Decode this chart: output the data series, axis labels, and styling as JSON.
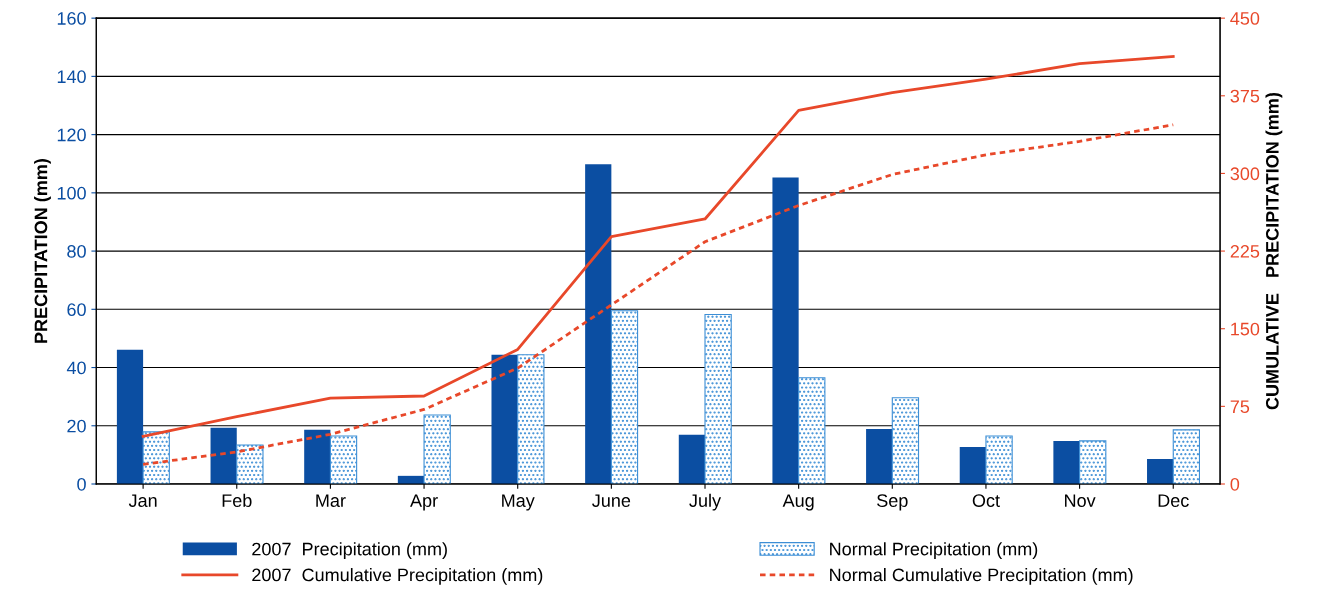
{
  "chart_data": {
    "type": "bar",
    "ylabel": "PRECIPITATION (mm)",
    "y2label": "CUMULATIVE   PRECIPITATION (mm)",
    "categories": [
      "Jan",
      "Feb",
      "Mar",
      "Apr",
      "May",
      "June",
      "July",
      "Aug",
      "Sep",
      "Oct",
      "Nov",
      "Dec"
    ],
    "series": [
      {
        "name": "2007  Precipitation (mm)",
        "color": "#0b4ea2",
        "values": [
          46.1,
          19.3,
          18.6,
          2.8,
          44.4,
          109.8,
          16.9,
          105.3,
          18.9,
          12.7,
          14.8,
          8.6
        ]
      },
      {
        "name": "Normal Precipitation (mm)",
        "color": "#3d8fd6",
        "values": [
          17.9,
          13.4,
          16.5,
          23.7,
          44.4,
          59.5,
          58.2,
          36.5,
          29.6,
          16.5,
          14.8,
          18.6
        ]
      },
      {
        "name": "2007  Cumulative Precipitation (mm)",
        "type": "line",
        "axis": "y2",
        "line_style": "solid",
        "color": "#e8482a",
        "values": [
          46,
          65,
          83,
          85,
          130,
          239,
          256,
          361,
          378,
          391,
          406,
          413
        ]
      },
      {
        "name": "Normal Cumulative Precipitation (mm)",
        "type": "line",
        "axis": "y2",
        "line_style": "dashed",
        "color": "#e8482a",
        "values": [
          19,
          31,
          48,
          72,
          112,
          173,
          234,
          269,
          299,
          318,
          331,
          347
        ]
      }
    ],
    "ylim": [
      0,
      160
    ],
    "yticks": [
      0,
      20,
      40,
      60,
      80,
      100,
      120,
      140,
      160
    ],
    "y2lim": [
      0,
      450
    ],
    "y2ticks": [
      0,
      75,
      150,
      225,
      300,
      375,
      450
    ],
    "grid": "y",
    "legend": "bottom",
    "marker": "none"
  }
}
